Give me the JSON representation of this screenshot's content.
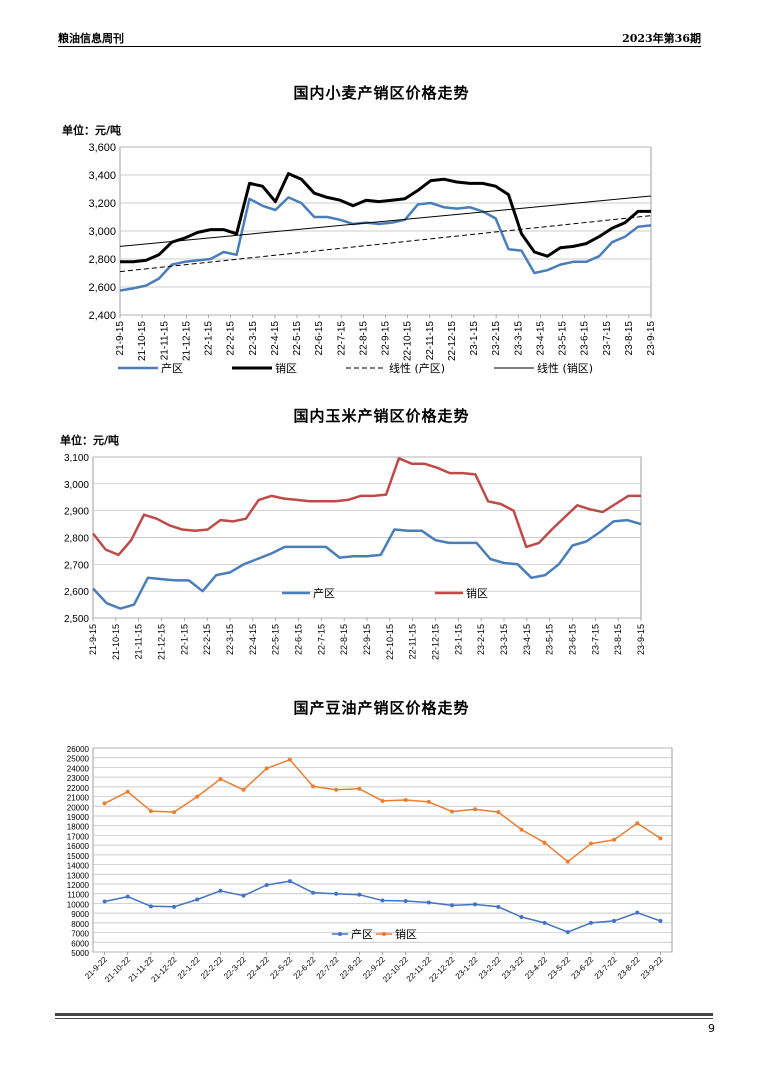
{
  "header": {
    "left": "粮油信息周刊",
    "right": "2023年第36期"
  },
  "page_number": "9",
  "chart_data": [
    {
      "type": "line",
      "title": "国内小麦产销区价格走势",
      "unit_label": "单位：元/吨",
      "ylim": [
        2400,
        3600
      ],
      "yticks": [
        "2,400",
        "2,600",
        "2,800",
        "3,000",
        "3,200",
        "3,400",
        "3,600"
      ],
      "grid": true,
      "legend_position": "bottom",
      "x_ticks": [
        "21-9-15",
        "21-10-15",
        "21-11-15",
        "21-12-15",
        "22-1-15",
        "22-2-15",
        "22-3-15",
        "22-4-15",
        "22-5-15",
        "22-6-15",
        "22-7-15",
        "22-8-15",
        "22-9-15",
        "22-10-15",
        "22-11-15",
        "22-12-15",
        "23-1-15",
        "23-2-15",
        "23-3-15",
        "23-4-15",
        "23-5-15",
        "23-6-15",
        "23-7-15",
        "23-8-15",
        "23-9-15"
      ],
      "series": [
        {
          "name": "产区",
          "color": "#4a7ebb",
          "values": [
            2575,
            2590,
            2610,
            2660,
            2760,
            2780,
            2790,
            2800,
            2850,
            2830,
            3230,
            3180,
            3150,
            3240,
            3200,
            3100,
            3100,
            3080,
            3050,
            3060,
            3050,
            3060,
            3080,
            3190,
            3200,
            3170,
            3160,
            3170,
            3140,
            3090,
            2870,
            2860,
            2700,
            2720,
            2760,
            2780,
            2780,
            2820,
            2920,
            2960,
            3030,
            3040
          ]
        },
        {
          "name": "销区",
          "color": "#000000",
          "values": [
            2780,
            2780,
            2790,
            2830,
            2920,
            2950,
            2990,
            3010,
            3010,
            2980,
            3340,
            3320,
            3210,
            3410,
            3370,
            3270,
            3240,
            3220,
            3180,
            3220,
            3210,
            3220,
            3230,
            3290,
            3360,
            3370,
            3350,
            3340,
            3340,
            3320,
            3260,
            2980,
            2850,
            2820,
            2880,
            2890,
            2910,
            2960,
            3020,
            3060,
            3140,
            3140
          ]
        },
        {
          "name": "线性 (产区)",
          "color": "#000000",
          "dash": true,
          "values": [
            2710,
            3110
          ]
        },
        {
          "name": "线性 (销区)",
          "color": "#000000",
          "values": [
            2890,
            3250
          ]
        }
      ]
    },
    {
      "type": "line",
      "title": "国内玉米产销区价格走势",
      "unit_label": "单位：元/吨",
      "ylim": [
        2500,
        3100
      ],
      "yticks": [
        "2,500",
        "2,600",
        "2,700",
        "2,800",
        "2,900",
        "3,000",
        "3,100"
      ],
      "grid": true,
      "legend_position": "inside-bottom",
      "x_ticks": [
        "21-9-15",
        "21-10-15",
        "21-11-15",
        "21-12-15",
        "22-1-15",
        "22-2-15",
        "22-3-15",
        "22-4-15",
        "22-5-15",
        "22-6-15",
        "22-7-15",
        "22-8-15",
        "22-9-15",
        "22-10-15",
        "22-11-15",
        "22-12-15",
        "23-1-15",
        "23-2-15",
        "23-3-15",
        "23-4-15",
        "23-5-15",
        "23-6-15",
        "23-7-15",
        "23-8-15",
        "23-9-15"
      ],
      "series": [
        {
          "name": "产区",
          "color": "#4a7ebb",
          "values": [
            2610,
            2555,
            2535,
            2550,
            2650,
            2645,
            2640,
            2640,
            2600,
            2660,
            2670,
            2700,
            2720,
            2740,
            2765,
            2765,
            2765,
            2765,
            2725,
            2730,
            2730,
            2735,
            2830,
            2825,
            2825,
            2790,
            2780,
            2780,
            2780,
            2720,
            2705,
            2700,
            2650,
            2660,
            2700,
            2770,
            2785,
            2820,
            2860,
            2865,
            2850
          ]
        },
        {
          "name": "销区",
          "color": "#be4b48",
          "values": [
            2815,
            2755,
            2735,
            2790,
            2885,
            2870,
            2845,
            2830,
            2825,
            2830,
            2865,
            2860,
            2870,
            2940,
            2955,
            2945,
            2940,
            2935,
            2935,
            2935,
            2940,
            2955,
            2955,
            2960,
            3095,
            3075,
            3075,
            3060,
            3040,
            3040,
            3035,
            2935,
            2925,
            2900,
            2765,
            2780,
            2830,
            2875,
            2920,
            2905,
            2895,
            2925,
            2955,
            2955
          ]
        }
      ]
    },
    {
      "type": "line",
      "title": "国产豆油产销区价格走势",
      "ylim": [
        5000,
        26000
      ],
      "yticks": [
        "5000",
        "6000",
        "7000",
        "8000",
        "9000",
        "10000",
        "11000",
        "12000",
        "13000",
        "14000",
        "15000",
        "16000",
        "17000",
        "18000",
        "19000",
        "20000",
        "21000",
        "22000",
        "23000",
        "24000",
        "25000",
        "26000"
      ],
      "grid": true,
      "legend_position": "inside-bottom",
      "categories": [
        "21-9-22",
        "21-10-22",
        "21-11-22",
        "21-12-22",
        "22-1-22",
        "22-2-22",
        "22-3-22",
        "22-4-22",
        "22-5-22",
        "22-6-22",
        "22-7-22",
        "22-8-22",
        "22-9-22",
        "22-10-22",
        "22-11-22",
        "22-12-22",
        "23-1-22",
        "23-2-22",
        "23-3-22",
        "23-4-22",
        "23-5-22",
        "23-6-22",
        "23-7-22",
        "23-8-22",
        "23-9-22"
      ],
      "series": [
        {
          "name": "产区",
          "color": "#4472c4",
          "values": [
            10200,
            10700,
            9700,
            9650,
            10400,
            11300,
            10800,
            11900,
            12300,
            11100,
            11000,
            10900,
            10300,
            10250,
            10100,
            9800,
            9900,
            9650,
            8600,
            8000,
            7050,
            8000,
            8200,
            9050,
            8200
          ]
        },
        {
          "name": "销区",
          "color": "#ed7d31",
          "values": [
            20300,
            21500,
            19500,
            19400,
            21000,
            22800,
            21700,
            23900,
            24800,
            22050,
            21700,
            21800,
            20550,
            20650,
            20450,
            19450,
            19700,
            19400,
            17600,
            16250,
            14300,
            16150,
            16550,
            18250,
            16700
          ]
        }
      ]
    }
  ]
}
